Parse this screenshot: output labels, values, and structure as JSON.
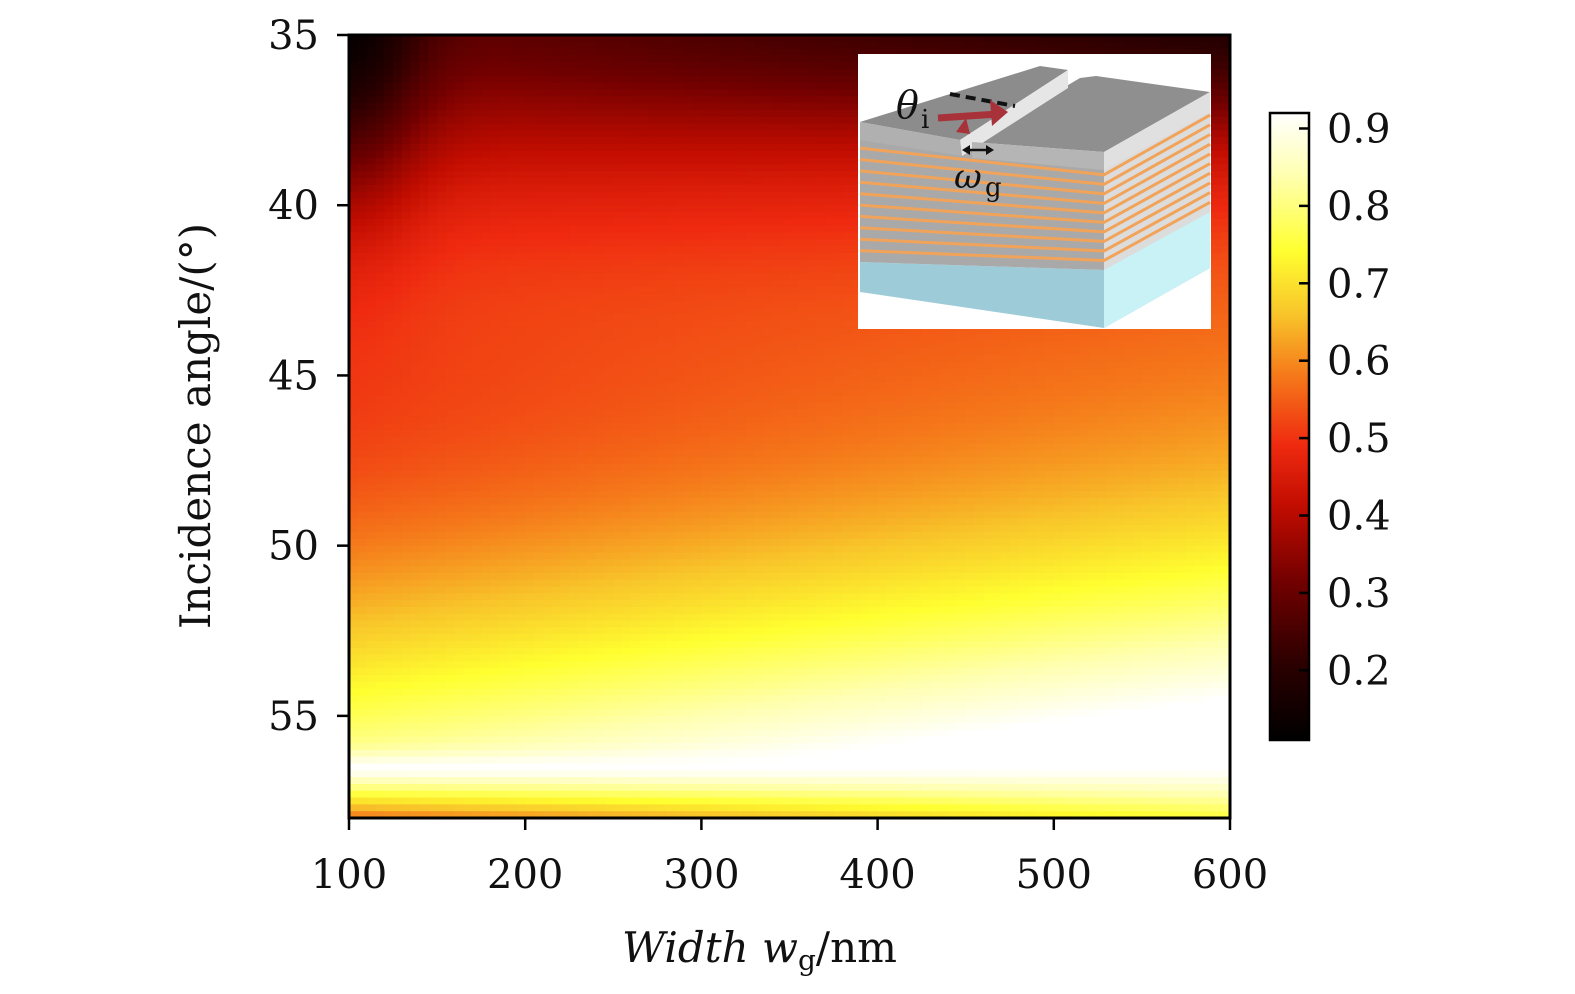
{
  "chart_data": {
    "type": "heatmap",
    "xlabel": "Width w",
    "xlabel_sub": "g",
    "xlabel_unit": "/nm",
    "ylabel": "Incidence angle/(°)",
    "x_ticks": [
      100,
      200,
      300,
      400,
      500,
      600
    ],
    "y_ticks": [
      35,
      40,
      45,
      50,
      55
    ],
    "xlim": [
      100,
      600
    ],
    "ylim": [
      58,
      35
    ],
    "y_axis_inverted": true,
    "colorbar": {
      "ticks": [
        0.2,
        0.3,
        0.4,
        0.5,
        0.6,
        0.7,
        0.8,
        0.9
      ],
      "range": [
        0.11,
        0.92
      ],
      "colormap": "hot"
    },
    "features": {
      "resonance_angle_deg": 56.6,
      "bright_band_peak_value": 0.92
    },
    "inset": {
      "theta_symbol": "θ",
      "theta_sub": "i",
      "width_symbol": "ω",
      "width_sub": "g"
    }
  }
}
